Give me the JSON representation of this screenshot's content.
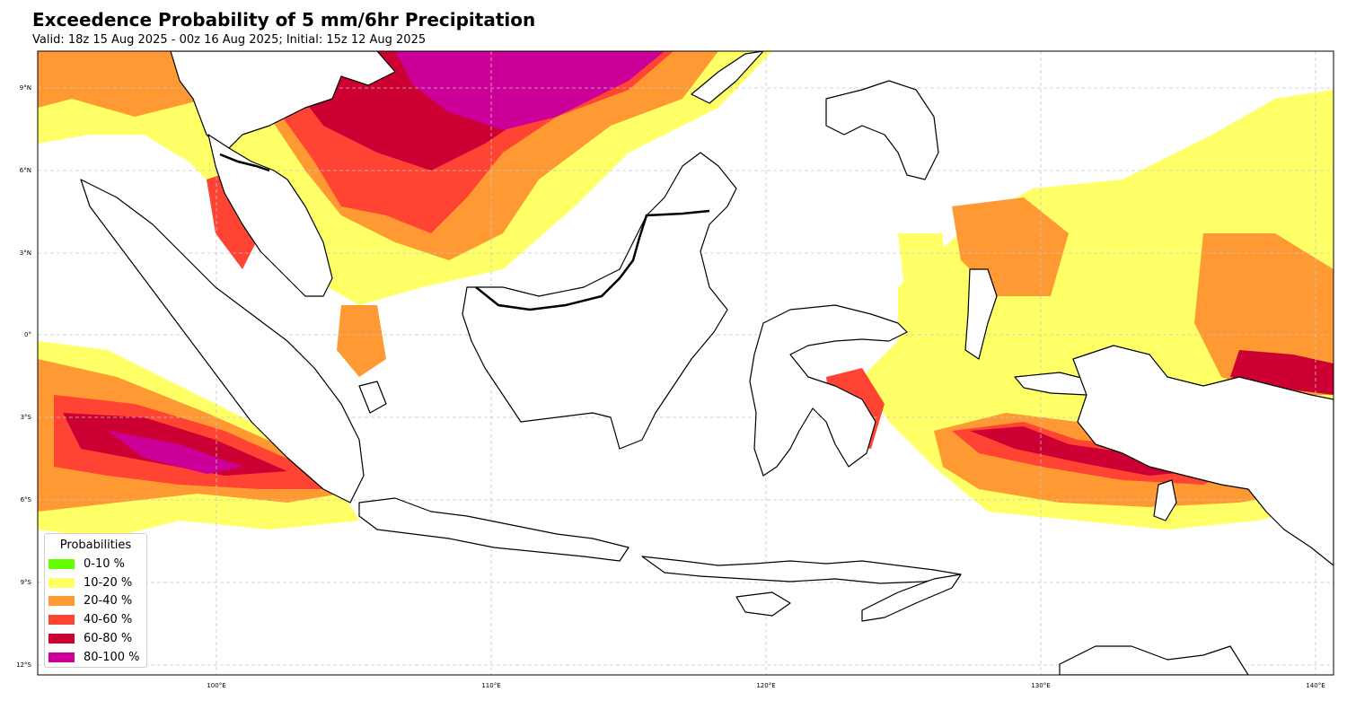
{
  "header": {
    "title": "Exceedence Probability of 5 mm/6hr Precipitation",
    "subtitle": "Valid: 18z 15 Aug 2025 - 00z 16 Aug 2025; Initial: 15z 12 Aug 2025"
  },
  "map": {
    "projection": "PlateCarree",
    "lon_range": [
      93.5,
      140.7
    ],
    "lat_range": [
      -12.5,
      10.3
    ],
    "gridlines": true,
    "lon_ticks": [
      {
        "value": 100,
        "label": "100°E"
      },
      {
        "value": 110,
        "label": "110°E"
      },
      {
        "value": 120,
        "label": "120°E"
      },
      {
        "value": 130,
        "label": "130°E"
      },
      {
        "value": 140,
        "label": "140°E"
      }
    ],
    "lat_ticks": [
      {
        "value": 9,
        "label": "9°N"
      },
      {
        "value": 6,
        "label": "6°N"
      },
      {
        "value": 3,
        "label": "3°N"
      },
      {
        "value": 0,
        "label": "0°"
      },
      {
        "value": -3,
        "label": "3°S"
      },
      {
        "value": -6,
        "label": "6°S"
      },
      {
        "value": -9,
        "label": "9°S"
      },
      {
        "value": -12,
        "label": "12°S"
      }
    ]
  },
  "legend": {
    "title": "Probabilities",
    "placement": "lower-left",
    "items": [
      {
        "label": "0-10 %",
        "color": "#66ff00"
      },
      {
        "label": "10-20 %",
        "color": "#ffff66"
      },
      {
        "label": "20-40 %",
        "color": "#ff9933"
      },
      {
        "label": "40-60 %",
        "color": "#ff4433"
      },
      {
        "label": "60-80 %",
        "color": "#cc0033"
      },
      {
        "label": "80-100 %",
        "color": "#cc0099"
      }
    ]
  }
}
